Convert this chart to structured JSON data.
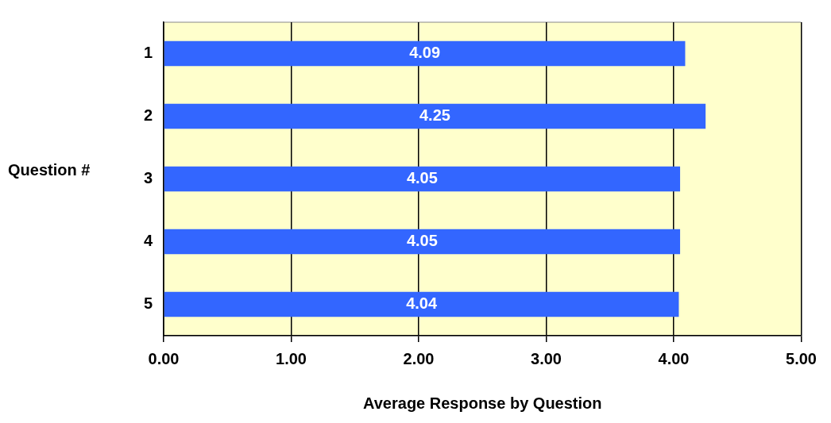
{
  "chart_data": {
    "type": "bar",
    "orientation": "horizontal",
    "xlabel": "Average Response by Question",
    "ylabel": "Question #",
    "categories": [
      "1",
      "2",
      "3",
      "4",
      "5"
    ],
    "values": [
      4.09,
      4.25,
      4.05,
      4.05,
      4.04
    ],
    "color": "#3366ff",
    "xlim": [
      0,
      5
    ],
    "xticks": [
      {
        "value": 0,
        "label": "0.00"
      },
      {
        "value": 1,
        "label": "1.00"
      },
      {
        "value": 2,
        "label": "2.00"
      },
      {
        "value": 3,
        "label": "3.00"
      },
      {
        "value": 4,
        "label": "4.00"
      },
      {
        "value": 5,
        "label": "5.00"
      }
    ],
    "grid": "x",
    "data_labels": true,
    "legend": false
  }
}
